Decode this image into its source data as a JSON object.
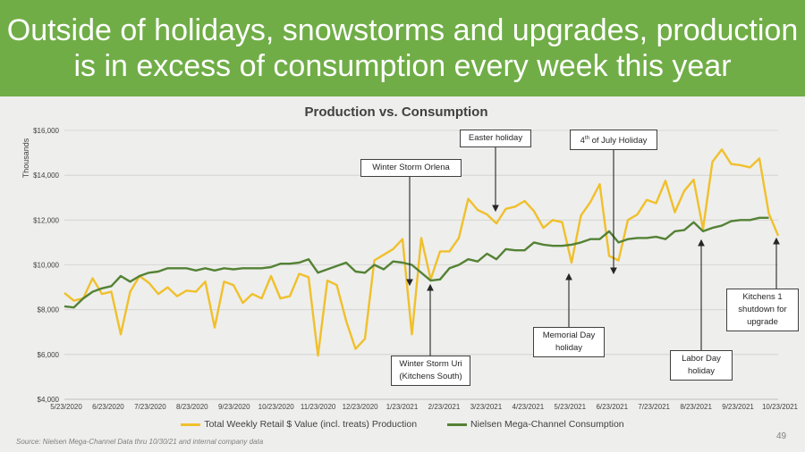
{
  "slide": {
    "title_line1": "Outside of holidays, snowstorms and upgrades, production",
    "title_line2": "is in excess of consumption every week this year",
    "source": "Source:  Nielsen Mega-Channel Data thru 10/30/21 and internal company data",
    "page_number": "49",
    "colors": {
      "header": "#70ad47",
      "production": "#f0c02c",
      "consumption": "#548235"
    }
  },
  "annotations": {
    "winter_storm_orlena": "Winter Storm  Orlena",
    "easter": "Easter holiday",
    "july4_pre": "4",
    "july4_sup": "th",
    "july4_post": " of July Holiday",
    "winter_storm_uri_1": "Winter Storm  Uri",
    "winter_storm_uri_2": "(Kitchens South)",
    "memorial_1": "Memorial  Day",
    "memorial_2": "holiday",
    "labor_1": "Labor Day",
    "labor_2": "holiday",
    "kitchens_1": "Kitchens 1",
    "kitchens_2": "shutdown for",
    "kitchens_3": "upgrade"
  },
  "chart_data": {
    "type": "line",
    "title": "Production vs. Consumption",
    "ylabel": "Thousands",
    "xlabel": "",
    "ylim": [
      4000,
      16000
    ],
    "y_ticks": [
      "$4,000",
      "$6,000",
      "$8,000",
      "$10,000",
      "$12,000",
      "$14,000",
      "$16,000"
    ],
    "x_ticks": [
      "5/23/2020",
      "6/23/2020",
      "7/23/2020",
      "8/23/2020",
      "9/23/2020",
      "10/23/2020",
      "11/23/2020",
      "12/23/2020",
      "1/23/2021",
      "2/23/2021",
      "3/23/2021",
      "4/23/2021",
      "5/23/2021",
      "6/23/2021",
      "7/23/2021",
      "8/23/2021",
      "9/23/2021",
      "10/23/2021"
    ],
    "grid": true,
    "legend_position": "bottom",
    "x_unit": "weeks starting 5/23/2020",
    "series": [
      {
        "name": "Total Weekly Retail $ Value (incl. treats) Production",
        "values": [
          8750,
          8400,
          8500,
          9400,
          8700,
          8800,
          6900,
          8800,
          9500,
          9200,
          8700,
          9000,
          8600,
          8850,
          8800,
          9250,
          7200,
          9250,
          9100,
          8300,
          8700,
          8500,
          9500,
          8500,
          8600,
          9600,
          9450,
          5950,
          9300,
          9100,
          7500,
          6250,
          6700,
          10200,
          10450,
          10700,
          11150,
          6900,
          11200,
          9350,
          10600,
          10600,
          11200,
          12950,
          12450,
          12250,
          11850,
          12500,
          12600,
          12850,
          12400,
          11650,
          12000,
          11900,
          10100,
          12200,
          12800,
          13600,
          10400,
          10200,
          12000,
          12250,
          12900,
          12750,
          13750,
          12350,
          13300,
          13800,
          11600,
          14600,
          15150,
          14500,
          14450,
          14350,
          14750,
          12300,
          11300
        ]
      },
      {
        "name": "Nielsen Mega-Channel Consumption",
        "values": [
          8150,
          8100,
          8500,
          8800,
          8950,
          9050,
          9500,
          9250,
          9500,
          9650,
          9700,
          9850,
          9850,
          9850,
          9750,
          9850,
          9750,
          9850,
          9800,
          9850,
          9850,
          9850,
          9900,
          10050,
          10050,
          10100,
          10250,
          9650,
          9800,
          9950,
          10100,
          9700,
          9650,
          10000,
          9800,
          10150,
          10100,
          10000,
          9650,
          9300,
          9350,
          9850,
          10000,
          10250,
          10150,
          10500,
          10250,
          10700,
          10650,
          10650,
          11000,
          10900,
          10850,
          10850,
          10900,
          11000,
          11150,
          11150,
          11500,
          11000,
          11150,
          11200,
          11200,
          11250,
          11150,
          11500,
          11550,
          11900,
          11500,
          11650,
          11750,
          11950,
          12000,
          12000,
          12100,
          12100
        ]
      }
    ]
  }
}
